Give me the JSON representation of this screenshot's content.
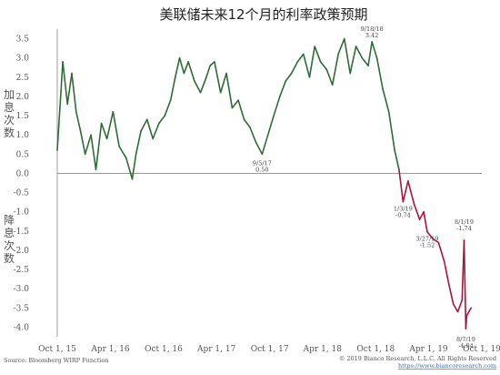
{
  "chart_data": {
    "type": "line",
    "title": "美联储未来12个月的利率政策预期",
    "side_labels": {
      "upper": [
        "加",
        "息",
        "次",
        "数"
      ],
      "lower": [
        "降",
        "息",
        "次",
        "数"
      ]
    },
    "ylim": [
      -4.25,
      3.75
    ],
    "yticks": [
      "3.5",
      "3.0",
      "2.5",
      "2.0",
      "1.5",
      "1.0",
      "0.5",
      "0.0",
      "-0.5",
      "-1.0",
      "-1.5",
      "-2.0",
      "-2.5",
      "-3.0",
      "-3.5",
      "-4.0"
    ],
    "xticks": [
      "Oct 1, 15",
      "Apr 1, 16",
      "Oct 1, 16",
      "Apr 1, 17",
      "Oct 1, 17",
      "Apr 1, 18",
      "Oct 1, 18",
      "Apr 1, 19",
      "Oct 1, 19"
    ],
    "series": [
      {
        "color_positive": "#2e6b35",
        "color_negative": "#a8143c",
        "x": [
          "2015-10-01",
          "2015-10-20",
          "2015-11-05",
          "2015-11-20",
          "2015-12-05",
          "2015-12-20",
          "2016-01-05",
          "2016-01-25",
          "2016-02-11",
          "2016-03-01",
          "2016-03-20",
          "2016-04-10",
          "2016-05-01",
          "2016-05-25",
          "2016-06-15",
          "2016-06-28",
          "2016-07-15",
          "2016-08-05",
          "2016-08-25",
          "2016-09-15",
          "2016-10-05",
          "2016-10-25",
          "2016-11-10",
          "2016-11-25",
          "2016-12-10",
          "2016-12-25",
          "2017-01-15",
          "2017-02-05",
          "2017-02-25",
          "2017-03-10",
          "2017-03-25",
          "2017-04-15",
          "2017-05-05",
          "2017-05-25",
          "2017-06-15",
          "2017-07-05",
          "2017-07-25",
          "2017-08-15",
          "2017-09-05",
          "2017-09-25",
          "2017-10-15",
          "2017-11-05",
          "2017-11-25",
          "2017-12-15",
          "2018-01-05",
          "2018-01-25",
          "2018-02-15",
          "2018-03-05",
          "2018-03-25",
          "2018-04-15",
          "2018-05-05",
          "2018-05-25",
          "2018-06-15",
          "2018-07-05",
          "2018-07-25",
          "2018-08-15",
          "2018-09-05",
          "2018-09-18",
          "2018-10-05",
          "2018-10-25",
          "2018-11-15",
          "2018-12-05",
          "2018-12-20",
          "2019-01-03",
          "2019-01-20",
          "2019-02-10",
          "2019-03-01",
          "2019-03-15",
          "2019-03-27",
          "2019-04-15",
          "2019-05-05",
          "2019-05-25",
          "2019-06-10",
          "2019-06-25",
          "2019-07-10",
          "2019-07-25",
          "2019-08-01",
          "2019-08-07",
          "2019-08-10",
          "2019-08-25"
        ],
        "values": [
          0.6,
          2.9,
          1.8,
          2.6,
          1.6,
          1.1,
          0.5,
          1.0,
          0.1,
          1.3,
          0.9,
          1.6,
          0.7,
          0.4,
          -0.15,
          0.5,
          1.1,
          1.4,
          0.9,
          1.3,
          1.5,
          1.9,
          2.5,
          3.0,
          2.6,
          2.9,
          2.4,
          2.1,
          2.5,
          2.8,
          2.9,
          2.1,
          2.6,
          1.7,
          1.9,
          1.4,
          1.2,
          0.8,
          0.5,
          1.0,
          1.5,
          2.0,
          2.4,
          2.6,
          2.9,
          3.1,
          2.5,
          3.3,
          2.9,
          2.7,
          2.3,
          3.1,
          3.5,
          2.6,
          3.3,
          3.0,
          2.8,
          3.42,
          3.0,
          2.2,
          1.6,
          0.6,
          0.1,
          -0.74,
          -0.2,
          -0.8,
          -1.2,
          -1.0,
          -1.52,
          -1.7,
          -1.8,
          -2.3,
          -2.9,
          -3.4,
          -3.6,
          -3.3,
          -1.74,
          -4.04,
          -3.7,
          -3.5
        ]
      }
    ],
    "annotations": [
      {
        "date": "2017-09-05",
        "value": 0.5,
        "label": "9/5/17",
        "value_label": "0.50"
      },
      {
        "date": "2018-09-18",
        "value": 3.42,
        "label": "9/18/18",
        "value_label": "3.42"
      },
      {
        "date": "2019-01-03",
        "value": -0.74,
        "label": "1/3/19",
        "value_label": "-0.74"
      },
      {
        "date": "2019-03-27",
        "value": -1.52,
        "label": "3/27/19",
        "value_label": "-1.52"
      },
      {
        "date": "2019-08-01",
        "value": -1.74,
        "label": "8/1/19",
        "value_label": "-1.74"
      },
      {
        "date": "2019-08-07",
        "value": -4.04,
        "label": "8/7/19",
        "value_label": "-4.04"
      }
    ],
    "source": "Source: Bloomberg WIRP Function",
    "copyright": "© 2019 Bianco Research, L.L.C. All Rights Reserved",
    "website": "https://www.biancoresearch.com"
  }
}
